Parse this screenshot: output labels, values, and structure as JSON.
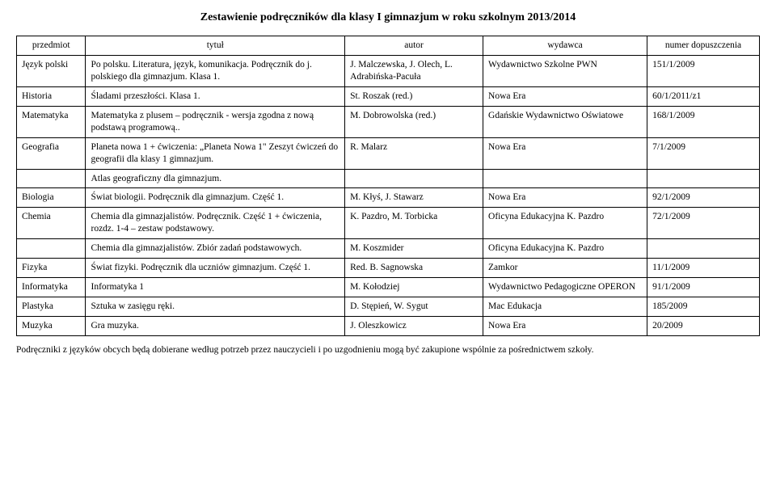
{
  "title": "Zestawienie podręczników dla klasy I gimnazjum w roku szkolnym 2013/2014",
  "columns": {
    "subject": "przedmiot",
    "booktitle": "tytuł",
    "author": "autor",
    "publisher": "wydawca",
    "number": "numer dopuszczenia"
  },
  "rows": [
    {
      "subject": "Język polski",
      "title": "Po polsku. Literatura, język, komunikacja. Podręcznik do j. polskiego dla gimnazjum. Klasa 1.",
      "author": "J. Malczewska, J. Olech, L. Adrabińska-Pacuła",
      "publisher": "Wydawnictwo Szkolne PWN",
      "number": "151/1/2009"
    },
    {
      "subject": "Historia",
      "title": "Śladami przeszłości. Klasa 1.",
      "author": "St. Roszak (red.)",
      "publisher": "Nowa Era",
      "number": "60/1/2011/z1"
    },
    {
      "subject": "Matematyka",
      "title": "Matematyka z plusem – podręcznik - wersja zgodna z nową podstawą programową..",
      "author": "M. Dobrowolska (red.)",
      "publisher": "Gdańskie Wydawnictwo Oświatowe",
      "number": "168/1/2009"
    },
    {
      "subject": "Geografia",
      "title": "Planeta nowa 1 + ćwiczenia: „Planeta Nowa 1\" Zeszyt ćwiczeń do geografii dla klasy 1 gimnazjum.",
      "author": "R. Malarz",
      "publisher": "Nowa Era",
      "number": "7/1/2009"
    },
    {
      "subject": "",
      "title": "Atlas geograficzny dla gimnazjum.",
      "author": "",
      "publisher": "",
      "number": ""
    },
    {
      "subject": "Biologia",
      "title": "Świat biologii. Podręcznik dla gimnazjum. Część 1.",
      "author": "M. Kłyś, J. Stawarz",
      "publisher": "Nowa Era",
      "number": "92/1/2009"
    },
    {
      "subject": "Chemia",
      "title": "Chemia dla gimnazjalistów. Podręcznik. Część 1 + ćwiczenia, rozdz. 1-4 – zestaw podstawowy.",
      "author": "K. Pazdro, M. Torbicka",
      "publisher": "Oficyna Edukacyjna K. Pazdro",
      "number": "72/1/2009"
    },
    {
      "subject": "",
      "title": "Chemia dla gimnazjalistów. Zbiór zadań podstawowych.",
      "author": "M. Koszmider",
      "publisher": "Oficyna Edukacyjna K. Pazdro",
      "number": ""
    },
    {
      "subject": "Fizyka",
      "title": "Świat fizyki. Podręcznik dla uczniów gimnazjum. Część 1.",
      "author": "Red. B. Sagnowska",
      "publisher": "Zamkor",
      "number": "11/1/2009"
    },
    {
      "subject": "Informatyka",
      "title": "Informatyka 1",
      "author": "M. Kołodziej",
      "publisher": "Wydawnictwo Pedagogiczne OPERON",
      "number": "91/1/2009"
    },
    {
      "subject": "Plastyka",
      "title": "Sztuka w zasięgu ręki.",
      "author": "D. Stępień, W. Sygut",
      "publisher": "Mac Edukacja",
      "number": "185/2009"
    },
    {
      "subject": "Muzyka",
      "title": "Gra muzyka.",
      "author": "J. Oleszkowicz",
      "publisher": "Nowa Era",
      "number": "20/2009"
    }
  ],
  "footer": "Podręczniki z języków obcych będą dobierane według potrzeb przez nauczycieli i po uzgodnieniu mogą być zakupione wspólnie za pośrednictwem szkoły."
}
